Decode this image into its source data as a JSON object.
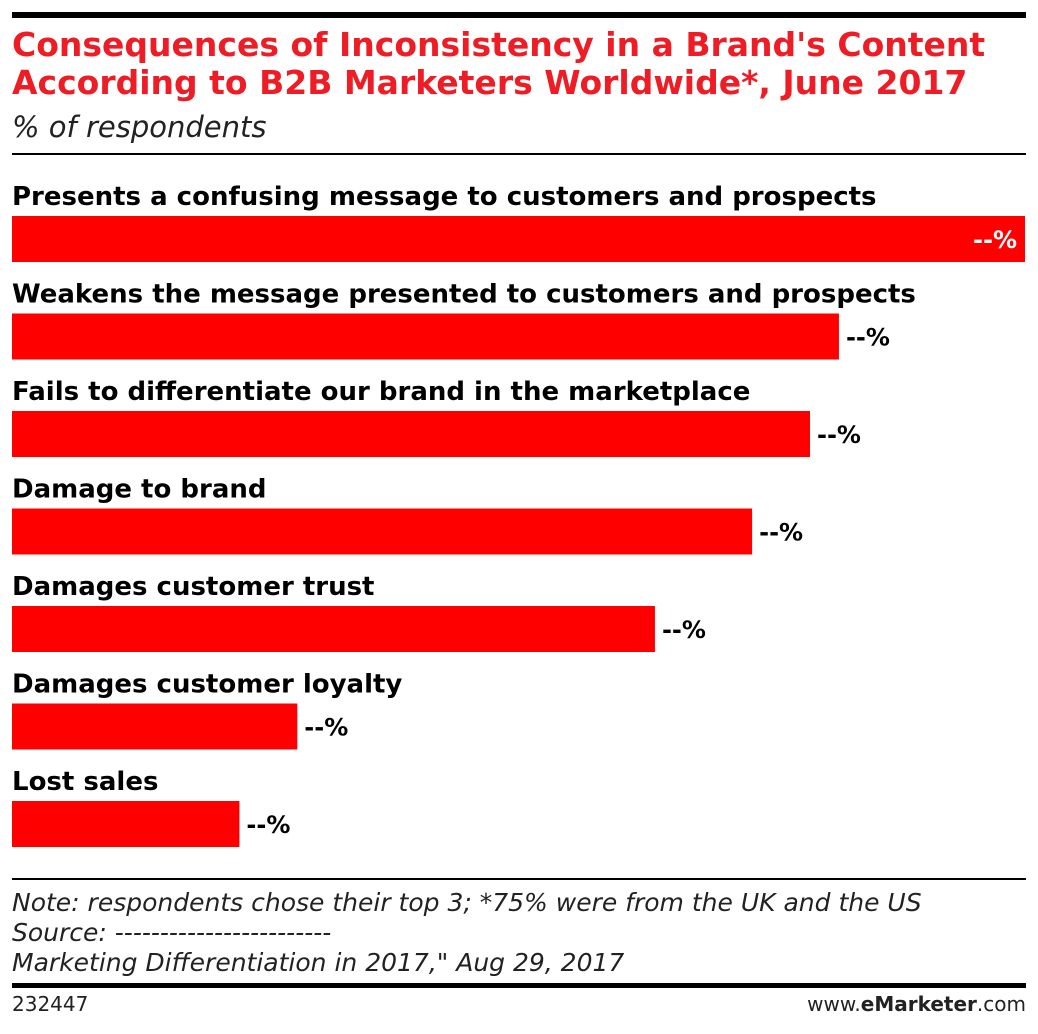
{
  "chart_data": {
    "type": "bar",
    "orientation": "horizontal",
    "title": [
      "Consequences of Inconsistency in a Brand's Content",
      "According to B2B Marketers Worldwide*, June 2017"
    ],
    "subtitle": "% of respondents",
    "categories": [
      "Presents a confusing message to customers and prospects",
      "Weakens the message presented to customers and prospects",
      "Fails to differentiate our brand in the marketplace",
      "Damage to brand",
      "Damages customer trust",
      "Damages customer loyalty",
      "Lost sales"
    ],
    "values": [
      49,
      40,
      38.6,
      35.8,
      31.1,
      13.8,
      11
    ],
    "value_labels": [
      "--%",
      "--%",
      "--%",
      "--%",
      "--%",
      "--%",
      "--%"
    ],
    "color": "#ff0000",
    "note": "Note: respondents chose their top 3; *75% were from the UK and the US",
    "source": [
      "Source: ------------------------",
      "Marketing Differentiation in 2017,\" Aug 29, 2017"
    ],
    "chart_id": "232447",
    "site": [
      "www.",
      "eMarketer",
      ".com"
    ]
  }
}
